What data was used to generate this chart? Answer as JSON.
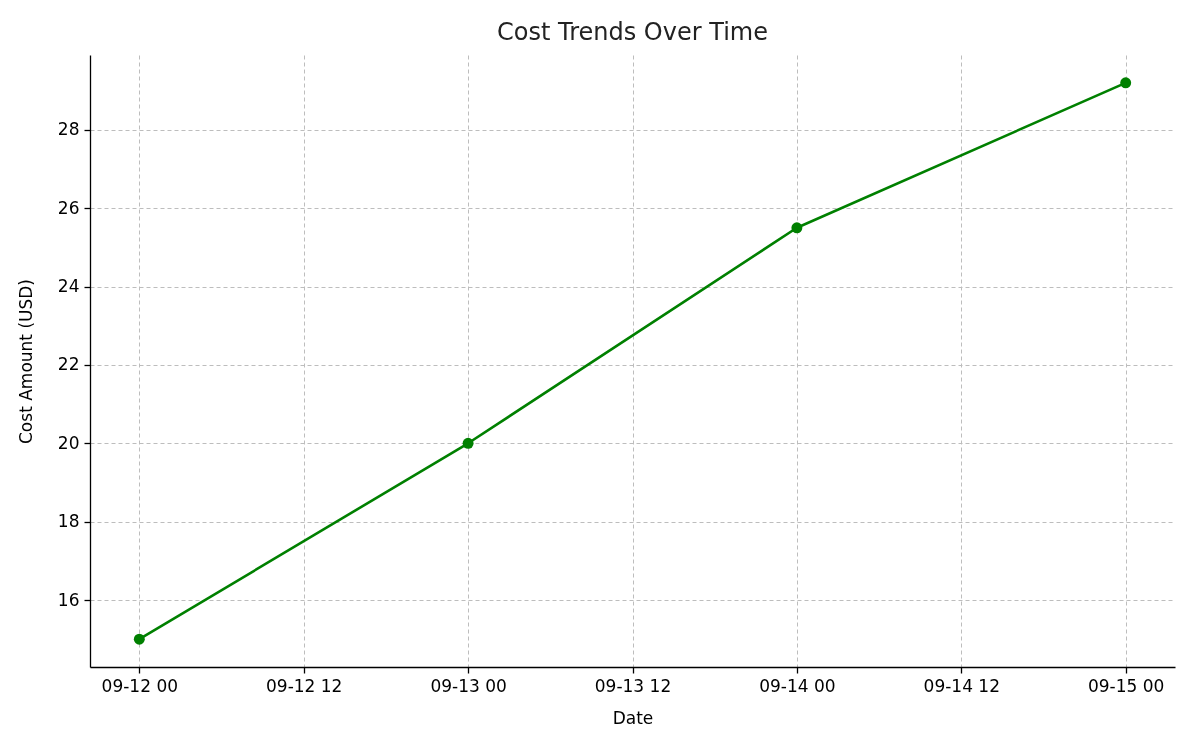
{
  "chart_data": {
    "type": "line",
    "title": "Cost Trends Over Time",
    "xlabel": "Date",
    "ylabel": "Cost Amount (USD)",
    "x": [
      "--09-12T00:00",
      "--09-13T00:00",
      "--09-14T00:00",
      "--09-15T00:00"
    ],
    "series": [
      {
        "color": "#008000",
        "values": [
          15.0,
          20.0,
          25.5,
          29.2
        ]
      }
    ],
    "xlim": [
      "--09-11T20:24",
      "--09-15T03:36"
    ],
    "xticks": [
      {
        "value": "--09-12T00:00",
        "label": "09-12 00"
      },
      {
        "value": "--09-12T12:00",
        "label": "09-12 12"
      },
      {
        "value": "--09-13T00:00",
        "label": "09-13 00"
      },
      {
        "value": "--09-13T12:00",
        "label": "09-13 12"
      },
      {
        "value": "--09-14T00:00",
        "label": "09-14 00"
      },
      {
        "value": "--09-14T12:00",
        "label": "09-14 12"
      },
      {
        "value": "--09-15T00:00",
        "label": "09-15 00"
      }
    ],
    "ylim": [
      14.29,
      29.91
    ],
    "yticks": [
      16,
      18,
      20,
      22,
      24,
      26,
      28
    ],
    "grid": true,
    "marker": "circle",
    "line_style": "solid"
  }
}
